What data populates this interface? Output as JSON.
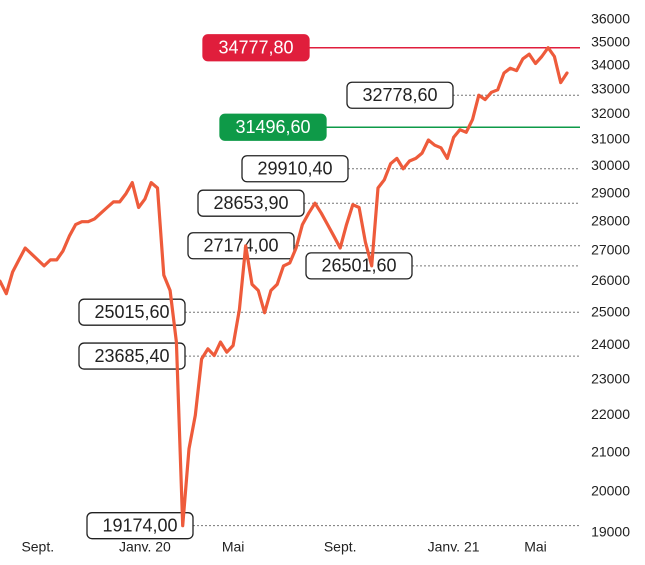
{
  "chart_data": {
    "type": "line",
    "categories": [
      null,
      null,
      null,
      null,
      null,
      null,
      "Sept.",
      null,
      null,
      null,
      null,
      null,
      null,
      null,
      null,
      null,
      null,
      null,
      null,
      null,
      null,
      null,
      null,
      "Janv. 20",
      null,
      null,
      null,
      null,
      null,
      null,
      null,
      null,
      null,
      null,
      null,
      null,
      null,
      "Mai",
      null,
      null,
      null,
      null,
      null,
      null,
      null,
      null,
      null,
      null,
      null,
      null,
      null,
      null,
      null,
      null,
      "Sept.",
      null,
      null,
      null,
      null,
      null,
      null,
      null,
      null,
      null,
      null,
      null,
      null,
      null,
      null,
      null,
      null,
      null,
      "Janv. 21",
      null,
      null,
      null,
      null,
      null,
      null,
      null,
      null,
      null,
      null,
      null,
      null,
      "Mai",
      null,
      null,
      null,
      null,
      null
    ],
    "series": [
      {
        "color": "#ee5b3b",
        "values": [
          26000,
          25600,
          26300,
          26700,
          27100,
          26900,
          26700,
          26500,
          26700,
          26700,
          27000,
          27500,
          27900,
          28000,
          28000,
          28100,
          28300,
          28500,
          28700,
          28700,
          29000,
          29400,
          28500,
          28800,
          29400,
          29200,
          26200,
          25700,
          24100,
          19174,
          21100,
          22000,
          23600,
          23900,
          23700,
          24100,
          23800,
          24000,
          25100,
          27174,
          25900,
          25700,
          25000,
          25700,
          25900,
          26500,
          26600,
          27100,
          27900,
          28300,
          28653.9,
          28300,
          27900,
          27500,
          27100,
          27900,
          28600,
          28500,
          27300,
          26501.6,
          29200,
          29500,
          30100,
          30300,
          29910.4,
          30200,
          30300,
          30500,
          31000,
          30800,
          30700,
          30300,
          31100,
          31400,
          31300,
          31800,
          32778.6,
          32600,
          32900,
          33000,
          33700,
          33900,
          33800,
          34300,
          34500,
          34100,
          34400,
          34777.8,
          34400,
          33300,
          33700
        ]
      }
    ],
    "ylim": [
      19000,
      36000
    ],
    "log_scale": true,
    "yticks": [
      19000,
      20000,
      21000,
      22000,
      23000,
      24000,
      25000,
      26000,
      27000,
      28000,
      29000,
      30000,
      31000,
      32000,
      33000,
      34000,
      35000,
      36000
    ],
    "annotations": [
      {
        "value": 34777.8,
        "label": "34777,80",
        "color": "#e01e3c"
      },
      {
        "value": 32778.6,
        "label": "32778,60"
      },
      {
        "value": 31496.6,
        "label": "31496,60",
        "color": "#0e9a48"
      },
      {
        "value": 29910.4,
        "label": "29910,40"
      },
      {
        "value": 28653.9,
        "label": "28653,90"
      },
      {
        "value": 27174,
        "label": "27174,00"
      },
      {
        "value": 26501.6,
        "label": "26501,60"
      },
      {
        "value": 25015.6,
        "label": "25015,60"
      },
      {
        "value": 23685.4,
        "label": "23685,40"
      },
      {
        "value": 19174,
        "label": "19174,00"
      }
    ]
  }
}
